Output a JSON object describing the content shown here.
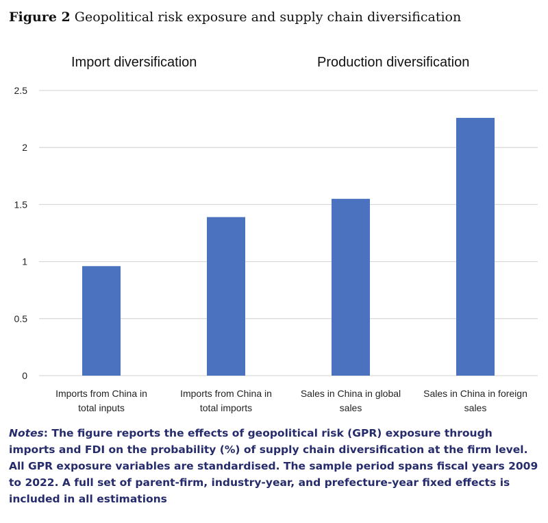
{
  "figure": {
    "label": "Figure 2",
    "title": "Geopolitical risk exposure and supply chain diversification"
  },
  "chart_data": {
    "type": "bar",
    "title": "Geopolitical risk exposure and supply chain diversification",
    "group_labels": [
      "Import diversification",
      "Production diversification"
    ],
    "categories": [
      [
        "Imports from China in",
        "total inputs"
      ],
      [
        "Imports from China in",
        "total imports"
      ],
      [
        "Sales in China in global",
        "sales"
      ],
      [
        "Sales in China in foreign",
        "sales"
      ]
    ],
    "values": [
      0.96,
      1.39,
      1.55,
      2.26
    ],
    "yticks": [
      "0",
      "0.5",
      "1",
      "1.5",
      "2",
      "2.5"
    ],
    "ylim": [
      0,
      2.5
    ],
    "grid": true,
    "bar_color": "#4a72bf",
    "xlabel": "",
    "ylabel": ""
  },
  "notes": {
    "label": "Notes",
    "text": ": The figure reports the effects of geopolitical risk (GPR) exposure through imports and FDI on the probability (%) of supply chain diversification at the firm level. All GPR exposure variables are standardised. The sample period spans fiscal years 2009 to 2022. A full set of parent-firm, industry-year, and prefecture-year fixed effects is included in all estimations"
  }
}
